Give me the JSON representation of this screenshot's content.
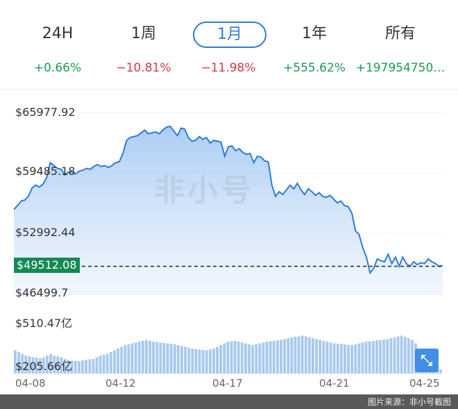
{
  "tabs": [
    {
      "label": "24H",
      "change": "+0.66%",
      "direction": "up"
    },
    {
      "label": "1周",
      "change": "−10.81%",
      "direction": "down"
    },
    {
      "label": "1月",
      "change": "−11.98%",
      "direction": "down",
      "active": true
    },
    {
      "label": "1年",
      "change": "+555.62%",
      "direction": "up"
    },
    {
      "label": "所有",
      "change": "+197954750…",
      "direction": "up"
    }
  ],
  "watermark": "非小号",
  "footer_text": "图片来源：非小号截图",
  "zoom_icon": "expand-arrows-icon",
  "chart_data": [
    {
      "type": "area",
      "y_tick_labels": [
        "$65977.92",
        "$59485.18",
        "$52992.44",
        "$46499.7"
      ],
      "y_ticks": [
        65977.92,
        59485.18,
        52992.44,
        46499.7
      ],
      "ylim": [
        46499.7,
        65977.92
      ],
      "current_value": 49512.08,
      "current_label": "$49512.08",
      "x_tick_labels": [
        "04-08",
        "04-12",
        "04-17",
        "04-21",
        "04-25"
      ],
      "grid": true,
      "line_color": "#2d7bd6",
      "values": [
        55600,
        56000,
        56500,
        56600,
        57000,
        57900,
        58200,
        58000,
        58300,
        59000,
        60600,
        60300,
        60000,
        59900,
        59300,
        59600,
        59600,
        59400,
        59700,
        59800,
        60000,
        59900,
        60200,
        60400,
        60200,
        60300,
        60100,
        60300,
        60600,
        60700,
        61600,
        63000,
        63300,
        63400,
        63500,
        63800,
        64100,
        63700,
        63800,
        63900,
        63700,
        64100,
        64400,
        64500,
        64000,
        63500,
        64300,
        64200,
        63300,
        62900,
        63000,
        63400,
        63100,
        63300,
        62700,
        63000,
        62900,
        62800,
        61300,
        62300,
        62400,
        61900,
        62100,
        61700,
        61500,
        61600,
        60600,
        61300,
        61200,
        60800,
        60700,
        58200,
        57000,
        57500,
        57200,
        57700,
        58200,
        57800,
        58400,
        57700,
        57200,
        57800,
        57500,
        57100,
        57400,
        57000,
        56900,
        57100,
        56700,
        56300,
        56500,
        56000,
        55900,
        55200,
        53300,
        52900,
        51500,
        50500,
        48800,
        49300,
        50300,
        50100,
        50000,
        50800,
        49800,
        50500,
        49500,
        50500,
        49800,
        49500,
        50000,
        49700,
        49900,
        49800,
        50300,
        50000,
        49800,
        49500,
        49600
      ]
    },
    {
      "type": "bar",
      "title": "",
      "y_tick_labels": [
        "$510.47亿",
        "$205.66亿"
      ],
      "ylim": [
        205.66,
        510.47
      ],
      "x_tick_labels": [
        "04-08",
        "04-12",
        "04-17",
        "04-21",
        "04-25"
      ],
      "values": [
        340,
        330,
        320,
        310,
        305,
        300,
        300,
        295,
        300,
        310,
        320,
        310,
        305,
        300,
        290,
        285,
        280,
        280,
        278,
        282,
        285,
        288,
        290,
        300,
        310,
        315,
        320,
        330,
        340,
        350,
        360,
        370,
        375,
        380,
        385,
        390,
        395,
        400,
        395,
        390,
        388,
        385,
        382,
        380,
        378,
        375,
        370,
        365,
        360,
        355,
        350,
        348,
        345,
        343,
        340,
        345,
        350,
        360,
        370,
        380,
        390,
        392,
        395,
        390,
        385,
        380,
        375,
        370,
        375,
        380,
        385,
        390,
        392,
        395,
        398,
        400,
        405,
        410,
        415,
        418,
        420,
        425,
        420,
        415,
        410,
        405,
        400,
        395,
        390,
        385,
        380,
        378,
        376,
        374,
        372,
        370,
        375,
        380,
        385,
        390,
        392,
        395,
        398,
        400,
        402,
        405,
        410,
        415,
        420,
        425,
        418,
        410,
        400,
        380,
        340,
        300,
        280,
        260,
        250,
        240,
        230
      ]
    }
  ]
}
